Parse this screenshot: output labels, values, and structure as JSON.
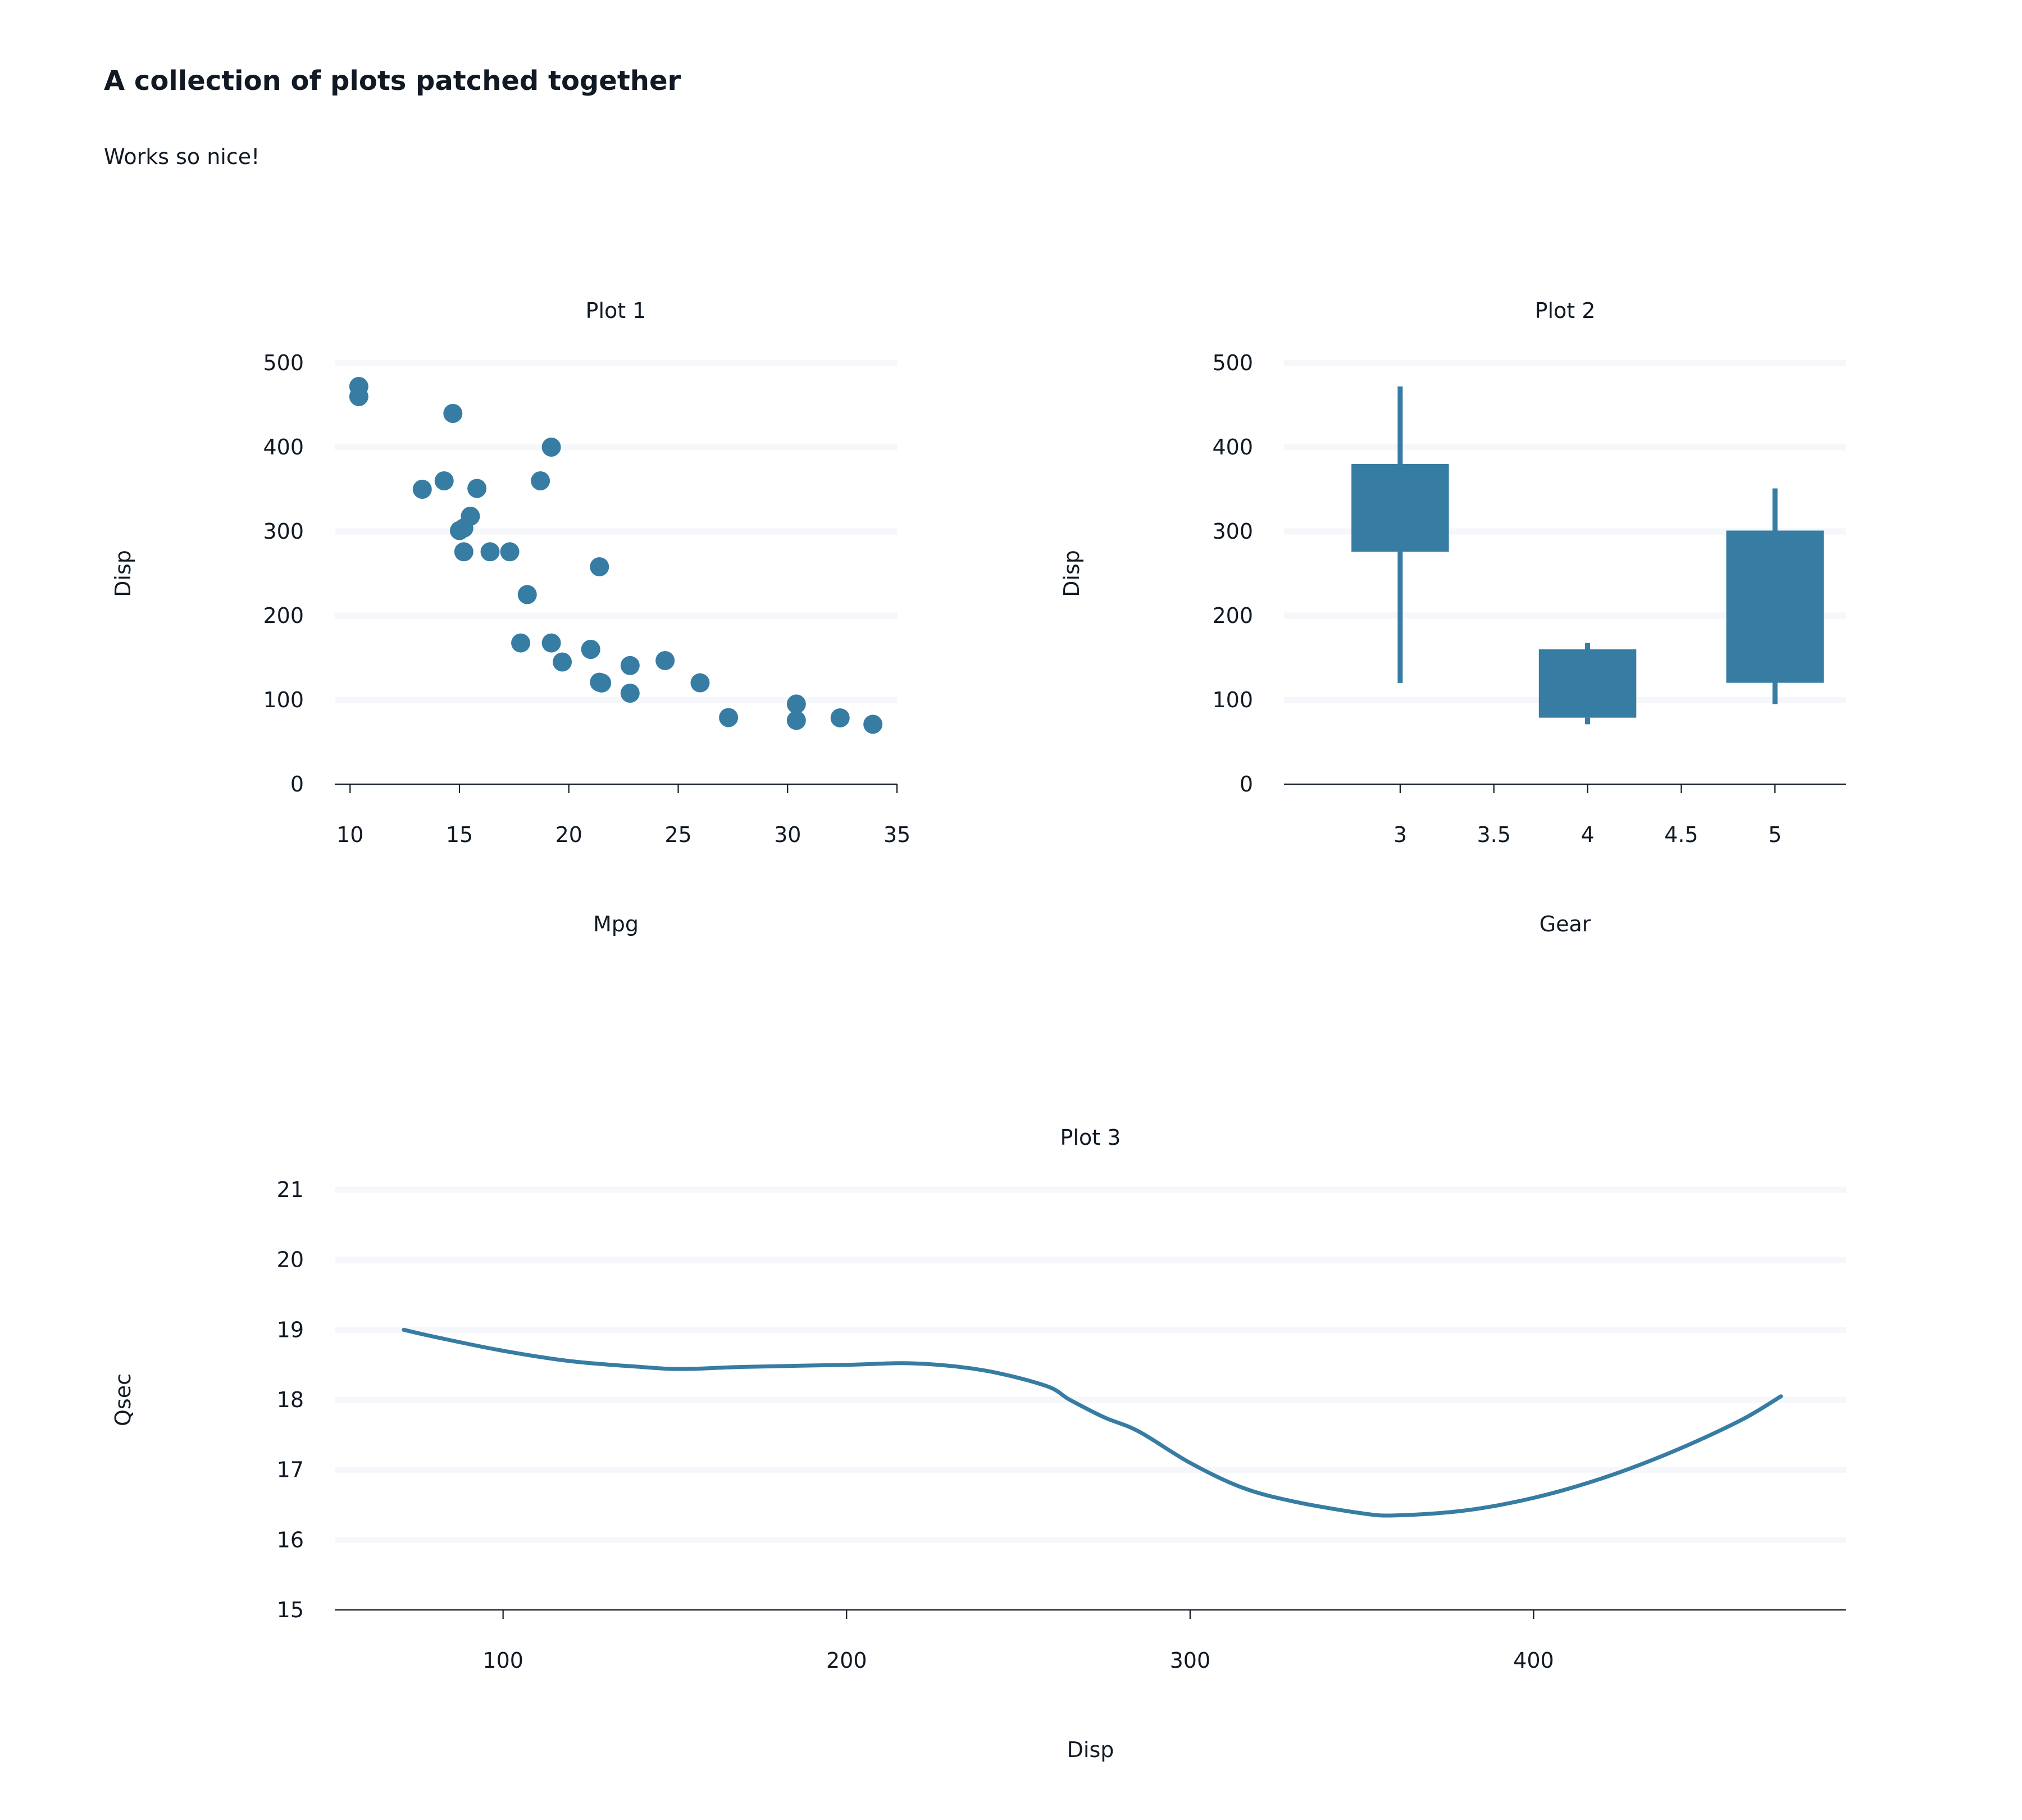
{
  "suptitle": "A collection of plots patched together",
  "subtitle": "Works so nice!",
  "colors": {
    "series": "#377ca3",
    "text": "#111a24",
    "grid": "#f5f7fa"
  },
  "chart_data": [
    {
      "type": "scatter",
      "title": "Plot 1",
      "xlabel": "Mpg",
      "ylabel": "Disp",
      "xlim": [
        9.3,
        35
      ],
      "ylim": [
        0,
        500
      ],
      "xticks": [
        "10",
        "15",
        "20",
        "25",
        "30",
        "35"
      ],
      "yticks": [
        "0",
        "100",
        "200",
        "300",
        "400",
        "500"
      ],
      "grid": "horizontal",
      "points": [
        [
          21.0,
          160
        ],
        [
          21.0,
          160
        ],
        [
          22.8,
          108
        ],
        [
          21.4,
          258
        ],
        [
          18.7,
          360
        ],
        [
          18.1,
          225
        ],
        [
          14.3,
          360
        ],
        [
          24.4,
          146.7
        ],
        [
          22.8,
          140.8
        ],
        [
          19.2,
          167.6
        ],
        [
          17.8,
          167.6
        ],
        [
          16.4,
          275.8
        ],
        [
          17.3,
          275.8
        ],
        [
          15.2,
          275.8
        ],
        [
          10.4,
          472
        ],
        [
          10.4,
          460
        ],
        [
          14.7,
          440
        ],
        [
          32.4,
          78.7
        ],
        [
          30.4,
          75.7
        ],
        [
          33.9,
          71.1
        ],
        [
          21.5,
          120.1
        ],
        [
          15.5,
          318
        ],
        [
          15.2,
          304
        ],
        [
          13.3,
          350
        ],
        [
          19.2,
          400
        ],
        [
          27.3,
          79
        ],
        [
          26.0,
          120.3
        ],
        [
          30.4,
          95.1
        ],
        [
          15.8,
          351
        ],
        [
          19.7,
          145
        ],
        [
          15.0,
          301
        ],
        [
          21.4,
          121
        ]
      ]
    },
    {
      "type": "box",
      "title": "Plot 2",
      "xlabel": "Gear",
      "ylabel": "Disp",
      "xlim": [
        2.38,
        5.38
      ],
      "ylim": [
        0,
        500
      ],
      "xticks": [
        "3",
        "3.5",
        "4",
        "4.5",
        "5"
      ],
      "yticks": [
        "0",
        "100",
        "200",
        "300",
        "400",
        "500"
      ],
      "grid": "horizontal",
      "boxes": [
        {
          "gear": 3,
          "min": 120.1,
          "q1": 275.8,
          "q3": 380,
          "max": 472
        },
        {
          "gear": 4,
          "min": 71.1,
          "q1": 78.9,
          "q3": 160,
          "max": 167.6
        },
        {
          "gear": 5,
          "min": 95.1,
          "q1": 120.3,
          "q3": 301,
          "max": 351
        }
      ]
    },
    {
      "type": "line",
      "title": "Plot 3",
      "xlabel": "Disp",
      "ylabel": "Qsec",
      "xlim": [
        51,
        491
      ],
      "ylim": [
        15,
        21
      ],
      "xticks": [
        "100",
        "200",
        "300",
        "400"
      ],
      "yticks": [
        "15",
        "16",
        "17",
        "18",
        "19",
        "20",
        "21"
      ],
      "grid": "horizontal",
      "x": [
        71.1,
        80,
        100,
        120,
        140,
        152,
        170,
        200,
        220,
        240,
        258,
        265,
        275,
        285,
        300,
        315,
        330,
        350,
        360,
        380,
        400,
        420,
        440,
        460,
        472
      ],
      "y": [
        19.0,
        18.9,
        18.7,
        18.55,
        18.47,
        18.44,
        18.47,
        18.5,
        18.52,
        18.42,
        18.2,
        18.0,
        17.75,
        17.55,
        17.1,
        16.75,
        16.55,
        16.38,
        16.35,
        16.42,
        16.6,
        16.88,
        17.25,
        17.7,
        18.05
      ]
    }
  ]
}
